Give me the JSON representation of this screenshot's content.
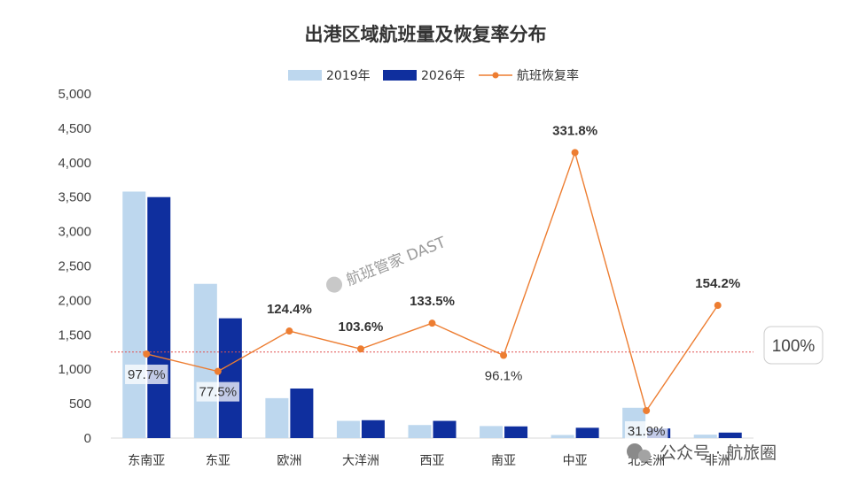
{
  "chart_data": {
    "type": "bar",
    "title": "出港区域航班量及恢复率分布",
    "categories": [
      "东南亚",
      "东亚",
      "欧洲",
      "大洋洲",
      "西亚",
      "南亚",
      "中亚",
      "北美洲",
      "非洲"
    ],
    "series": [
      {
        "name": "2019年",
        "kind": "bar",
        "color": "#bdd7ee",
        "values": [
          3580,
          2240,
          580,
          250,
          190,
          175,
          45,
          440,
          50
        ]
      },
      {
        "name": "2026年",
        "kind": "bar",
        "color": "#0f2f9e",
        "values": [
          3500,
          1740,
          720,
          260,
          250,
          170,
          150,
          140,
          80
        ]
      },
      {
        "name": "航班恢复率",
        "kind": "line",
        "color": "#ed7d31",
        "axis": "secondary",
        "values": [
          97.7,
          77.5,
          124.4,
          103.6,
          133.5,
          96.1,
          331.8,
          31.9,
          154.2
        ],
        "labels": [
          "97.7%",
          "77.5%",
          "124.4%",
          "103.6%",
          "133.5%",
          "96.1%",
          "331.8%",
          "31.9%",
          "154.2%"
        ]
      }
    ],
    "ylim": [
      0,
      5000
    ],
    "yticks": [
      "0",
      "500",
      "1,000",
      "1,500",
      "2,000",
      "2,500",
      "3,000",
      "3,500",
      "4,000",
      "4,500",
      "5,000"
    ],
    "secondary_ylim": [
      0,
      400
    ],
    "reference_line": {
      "value": 100,
      "label": "100%",
      "color": "#e05050",
      "style": "dotted"
    },
    "legend_position": "top-center",
    "grid": false,
    "xlabel": "",
    "ylabel": ""
  },
  "watermarks": {
    "center": "航班管家 DAST",
    "corner": "公众号 · 航旅圈"
  }
}
